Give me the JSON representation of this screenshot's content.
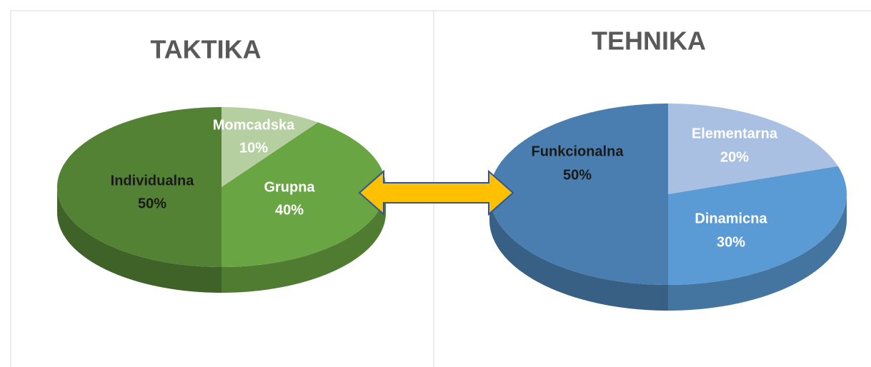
{
  "chart_data": [
    {
      "type": "pie",
      "title": "TAKTIKA",
      "categories": [
        "Momcadska",
        "Grupna",
        "Individualna"
      ],
      "values": [
        10,
        40,
        50
      ],
      "value_labels": [
        "10%",
        "40%",
        "50%"
      ],
      "colors": [
        "#b5cfa0",
        "#6aa543",
        "#548235"
      ]
    },
    {
      "type": "pie",
      "title": "TEHNIKA",
      "categories": [
        "Elementarna",
        "Dinamicna",
        "Funkcionalna"
      ],
      "values": [
        20,
        30,
        50
      ],
      "value_labels": [
        "20%",
        "30%",
        "50%"
      ],
      "colors": [
        "#a9c0e2",
        "#5b9bd5",
        "#4a7eb0"
      ]
    }
  ]
}
